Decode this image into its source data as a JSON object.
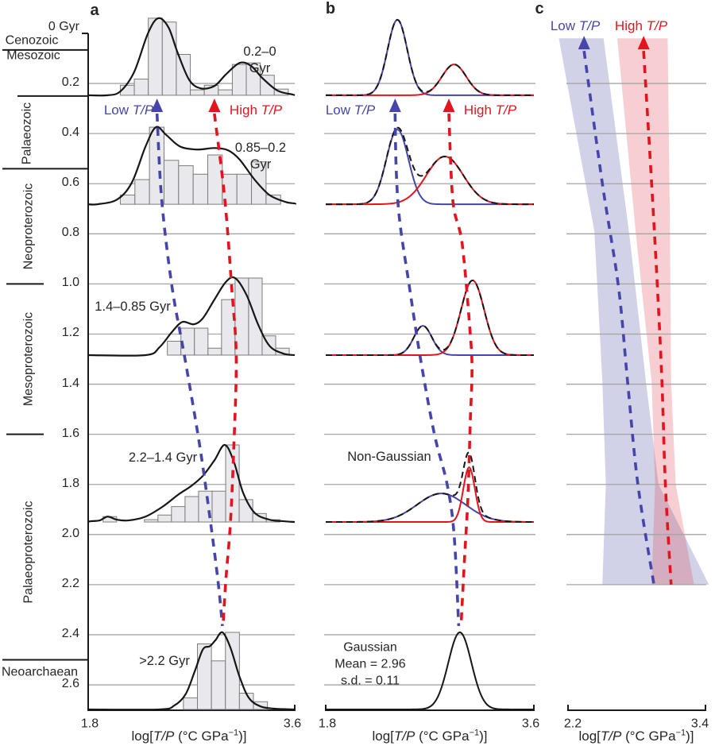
{
  "colors": {
    "low_tp": "#4646aa",
    "high_tp": "#e3141e",
    "band_low": "rgba(86,86,168,0.27)",
    "band_high": "rgba(226,70,80,0.26)",
    "hist_fill": "#e9e9ed",
    "hist_stroke": "#7c7c7c",
    "curve": "#161616",
    "gridline": "#a5a5a5",
    "axis": "#1a1a1a",
    "text": "#262626"
  },
  "panels": {
    "a": {
      "letter": "a"
    },
    "b": {
      "letter": "b"
    },
    "c": {
      "letter": "c"
    }
  },
  "labels": {
    "low_tp": {
      "pre": "Low ",
      "it": "T/P"
    },
    "high_tp": {
      "pre": "High ",
      "it": "T/P"
    },
    "non_gaussian": "Non-Gaussian",
    "gaussian": [
      "Gaussian",
      "Mean = 2.96",
      "s.d. = 0.11"
    ]
  },
  "time_axis": {
    "top": "0 Gyr",
    "ticks": [
      0.2,
      0.4,
      0.6,
      0.8,
      1.0,
      1.2,
      1.4,
      1.6,
      1.8,
      2.0,
      2.2,
      2.4,
      2.6
    ],
    "eras": [
      {
        "name": "Cenozoic",
        "orientation": "h",
        "label_gyr": 0.028
      },
      {
        "name": "Mesozoic",
        "orientation": "h",
        "label_gyr": 0.089
      },
      {
        "name": "Palaeozoic",
        "orientation": "v",
        "label_gyr": 0.4
      },
      {
        "name": "Neoproterozoic",
        "orientation": "v",
        "label_gyr": 0.77
      },
      {
        "name": "Mesoproterozoic",
        "orientation": "v",
        "label_gyr": 1.3
      },
      {
        "name": "Palaeoproterozoic",
        "orientation": "v",
        "label_gyr": 2.07
      },
      {
        "name": "Neoarchaean",
        "orientation": "h",
        "label_gyr": 2.55
      }
    ],
    "boundaries": [
      {
        "gyr": 0.066,
        "extent": "full"
      },
      {
        "gyr": 0.25,
        "extent": "mid"
      },
      {
        "gyr": 0.54,
        "extent": "full"
      },
      {
        "gyr": 1.0,
        "extent": "short"
      },
      {
        "gyr": 1.6,
        "extent": "short"
      },
      {
        "gyr": 2.5,
        "extent": "full"
      }
    ]
  },
  "axis_label_parts": {
    "pre": "log[",
    "it": "T/P",
    "mid": " (°C GPa",
    "sup": "−1",
    "post": ")]"
  },
  "chart_data": [
    {
      "panel": "a",
      "type": "histogram-ridgeline",
      "x_axis": {
        "min": 1.8,
        "max": 3.6,
        "ticks": [
          "1.8",
          "3.6"
        ]
      },
      "rows": [
        {
          "label_lines": [
            "0.2–0",
            "Gyr"
          ],
          "baseline_gyr": 0.247,
          "bins": {
            "start": 2.08,
            "width": 0.122,
            "heights": [
              0.13,
              0.21,
              1.0,
              0.95,
              0.53,
              0.07,
              0.13,
              0.07,
              0.4,
              0.42,
              0.26,
              0.08
            ]
          },
          "curve": [
            [
              1.97,
              0.0
            ],
            [
              2.08,
              0.05
            ],
            [
              2.2,
              0.3
            ],
            [
              2.32,
              0.8
            ],
            [
              2.41,
              1.0
            ],
            [
              2.5,
              0.88
            ],
            [
              2.58,
              0.55
            ],
            [
              2.68,
              0.2
            ],
            [
              2.78,
              0.09
            ],
            [
              2.9,
              0.12
            ],
            [
              3.0,
              0.27
            ],
            [
              3.12,
              0.42
            ],
            [
              3.22,
              0.38
            ],
            [
              3.32,
              0.22
            ],
            [
              3.45,
              0.06
            ],
            [
              3.58,
              0.01
            ]
          ]
        },
        {
          "label_lines": [
            "0.85–0.2",
            "Gyr"
          ],
          "baseline_gyr": 0.682,
          "bins": {
            "start": 2.08,
            "width": 0.127,
            "heights": [
              0.12,
              0.32,
              1.0,
              0.57,
              0.5,
              0.39,
              0.64,
              0.39,
              0.39,
              0.55,
              0.12
            ]
          },
          "curve": [
            [
              1.88,
              0.0
            ],
            [
              2.05,
              0.06
            ],
            [
              2.18,
              0.28
            ],
            [
              2.3,
              0.75
            ],
            [
              2.39,
              1.0
            ],
            [
              2.48,
              0.9
            ],
            [
              2.6,
              0.75
            ],
            [
              2.75,
              0.71
            ],
            [
              2.9,
              0.73
            ],
            [
              3.02,
              0.7
            ],
            [
              3.12,
              0.58
            ],
            [
              3.25,
              0.32
            ],
            [
              3.38,
              0.12
            ],
            [
              3.52,
              0.03
            ],
            [
              3.6,
              0.01
            ]
          ]
        },
        {
          "label_lines": [
            "1.4–0.85 Gyr"
          ],
          "baseline_gyr": 1.284,
          "bins": {
            "start": 2.49,
            "width": 0.118,
            "heights": [
              0.18,
              0.35,
              0.35,
              0.09,
              0.72,
              1.0,
              1.0,
              0.25,
              0.09
            ]
          },
          "curve": [
            [
              2.3,
              0.0
            ],
            [
              2.42,
              0.1
            ],
            [
              2.53,
              0.3
            ],
            [
              2.62,
              0.43
            ],
            [
              2.72,
              0.4
            ],
            [
              2.8,
              0.48
            ],
            [
              2.9,
              0.72
            ],
            [
              3.0,
              0.95
            ],
            [
              3.08,
              1.0
            ],
            [
              3.18,
              0.78
            ],
            [
              3.28,
              0.4
            ],
            [
              3.38,
              0.12
            ],
            [
              3.5,
              0.02
            ]
          ]
        },
        {
          "label_lines": [
            "2.2–1.4 Gyr"
          ],
          "baseline_gyr": 1.95,
          "bins": {
            "start": 2.29,
            "width": 0.118,
            "heights": [
              0.03,
              0.09,
              0.2,
              0.33,
              0.4,
              0.4,
              1.0,
              0.29,
              0.11,
              0.03
            ]
          },
          "extra_bars": [
            {
              "x": 1.93,
              "w": 0.118,
              "h": 0.07
            }
          ],
          "curve": [
            [
              1.82,
              0.01
            ],
            [
              1.9,
              0.02
            ],
            [
              1.97,
              0.07
            ],
            [
              2.05,
              0.03
            ],
            [
              2.15,
              0.02
            ],
            [
              2.3,
              0.07
            ],
            [
              2.45,
              0.2
            ],
            [
              2.58,
              0.35
            ],
            [
              2.7,
              0.47
            ],
            [
              2.8,
              0.6
            ],
            [
              2.9,
              0.8
            ],
            [
              2.99,
              1.0
            ],
            [
              3.07,
              0.78
            ],
            [
              3.15,
              0.38
            ],
            [
              3.25,
              0.12
            ],
            [
              3.38,
              0.03
            ],
            [
              3.5,
              0.01
            ]
          ]
        },
        {
          "label_lines": [
            ">2.2 Gyr"
          ],
          "baseline_gyr": 2.698,
          "bins": {
            "start": 2.63,
            "width": 0.122,
            "heights": [
              0.15,
              0.85,
              0.63,
              1.0,
              0.21,
              0.1
            ]
          },
          "curve": [
            [
              2.42,
              0.0
            ],
            [
              2.55,
              0.05
            ],
            [
              2.65,
              0.2
            ],
            [
              2.73,
              0.5
            ],
            [
              2.8,
              0.78
            ],
            [
              2.86,
              0.82
            ],
            [
              2.91,
              0.9
            ],
            [
              2.97,
              1.0
            ],
            [
              3.04,
              0.8
            ],
            [
              3.12,
              0.42
            ],
            [
              3.2,
              0.15
            ],
            [
              3.3,
              0.04
            ],
            [
              3.42,
              0.01
            ]
          ]
        }
      ],
      "trends": {
        "low": [
          [
            2.4,
            0.26
          ],
          [
            2.44,
            0.66
          ],
          [
            2.53,
            1.01
          ],
          [
            2.64,
            1.29
          ],
          [
            2.77,
            1.64
          ],
          [
            2.86,
            1.93
          ],
          [
            2.93,
            2.18
          ],
          [
            2.97,
            2.365
          ]
        ],
        "high": [
          [
            2.9,
            0.26
          ],
          [
            2.99,
            0.66
          ],
          [
            3.05,
            1.01
          ],
          [
            3.09,
            1.29
          ],
          [
            3.07,
            1.64
          ],
          [
            3.04,
            1.95
          ],
          [
            3.0,
            2.18
          ],
          [
            2.975,
            2.365
          ]
        ]
      }
    },
    {
      "panel": "b",
      "type": "gaussian-decomposition",
      "x_axis": {
        "min": 1.8,
        "max": 3.6,
        "ticks": [
          "1.8",
          "3.6"
        ]
      },
      "rows": [
        {
          "baseline_gyr": 0.247,
          "components": [
            {
              "series": "low",
              "mean": 2.42,
              "sd": 0.085,
              "amp": 0.98
            },
            {
              "series": "high",
              "mean": 2.91,
              "sd": 0.105,
              "amp": 0.4
            }
          ]
        },
        {
          "baseline_gyr": 0.682,
          "components": [
            {
              "series": "low",
              "mean": 2.42,
              "sd": 0.095,
              "amp": 0.97
            },
            {
              "series": "high",
              "mean": 2.83,
              "sd": 0.16,
              "amp": 0.62
            }
          ]
        },
        {
          "baseline_gyr": 1.284,
          "components": [
            {
              "series": "low",
              "mean": 2.64,
              "sd": 0.078,
              "amp": 0.38
            },
            {
              "series": "high",
              "mean": 3.07,
              "sd": 0.1,
              "amp": 0.97
            }
          ]
        },
        {
          "baseline_gyr": 1.95,
          "components": [
            {
              "series": "low",
              "mean": 2.8,
              "sd": 0.21,
              "amp": 0.37
            },
            {
              "series": "high",
              "mean": 3.04,
              "sd": 0.05,
              "amp": 0.71
            }
          ]
        },
        {
          "baseline_gyr": 2.698,
          "components": [
            {
              "series": "black",
              "mean": 2.96,
              "sd": 0.1,
              "amp": 1.0
            }
          ]
        }
      ],
      "trends": {
        "low": [
          [
            2.4,
            0.26
          ],
          [
            2.41,
            0.55
          ],
          [
            2.44,
            0.75
          ],
          [
            2.52,
            1.0
          ],
          [
            2.62,
            1.3
          ],
          [
            2.74,
            1.6
          ],
          [
            2.85,
            1.8
          ],
          [
            2.91,
            2.0
          ],
          [
            2.95,
            2.365
          ]
        ],
        "high": [
          [
            2.865,
            0.26
          ],
          [
            2.9,
            0.67
          ],
          [
            2.98,
            0.84
          ],
          [
            3.05,
            1.2
          ],
          [
            3.065,
            1.35
          ],
          [
            3.05,
            1.55
          ],
          [
            3.03,
            1.85
          ],
          [
            3.0,
            2.1
          ],
          [
            2.97,
            2.365
          ]
        ]
      }
    },
    {
      "panel": "c",
      "type": "trend-bands",
      "x_axis": {
        "min": 2.2,
        "max": 3.4,
        "ticks": [
          "2.2",
          "3.4"
        ]
      },
      "gridline_max_gyr": 2.2,
      "bands": [
        {
          "series": "low",
          "left": [
            [
              2.12,
              0.02
            ],
            [
              2.43,
              0.79
            ],
            [
              2.5,
              1.39
            ],
            [
              2.53,
              1.8
            ],
            [
              2.5,
              2.2
            ]
          ],
          "right": [
            [
              2.51,
              0.02
            ],
            [
              2.74,
              0.82
            ],
            [
              2.88,
              1.39
            ],
            [
              2.99,
              1.8
            ],
            [
              3.43,
              2.2
            ]
          ]
        },
        {
          "series": "high",
          "left": [
            [
              2.63,
              0.02
            ],
            [
              2.79,
              0.79
            ],
            [
              2.93,
              1.39
            ],
            [
              2.96,
              1.8
            ],
            [
              2.93,
              2.2
            ]
          ],
          "right": [
            [
              3.07,
              0.02
            ],
            [
              3.09,
              0.79
            ],
            [
              3.1,
              1.39
            ],
            [
              3.14,
              1.8
            ],
            [
              3.3,
              2.2
            ]
          ]
        }
      ],
      "trends": {
        "low": [
          [
            2.34,
            0.01
          ],
          [
            2.5,
            0.6
          ],
          [
            2.64,
            1.01
          ],
          [
            2.72,
            1.39
          ],
          [
            2.81,
            1.8
          ],
          [
            2.95,
            2.2
          ]
        ],
        "high": [
          [
            2.86,
            0.01
          ],
          [
            2.93,
            0.6
          ],
          [
            2.98,
            1.01
          ],
          [
            3.02,
            1.39
          ],
          [
            3.05,
            1.8
          ],
          [
            3.1,
            2.2
          ]
        ]
      }
    }
  ]
}
